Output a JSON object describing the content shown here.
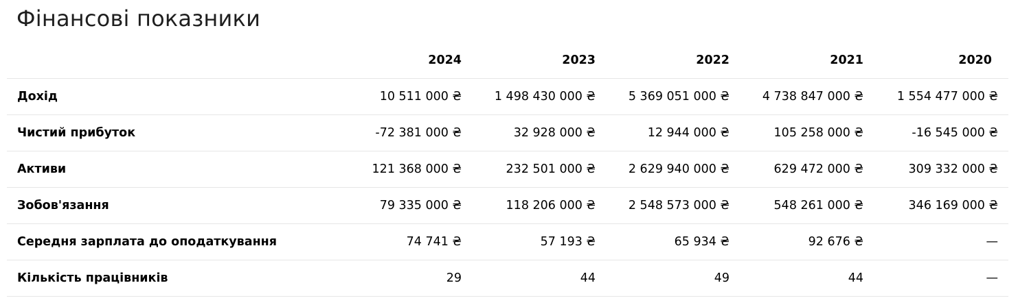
{
  "title": "Фінансові показники",
  "chart_data": {
    "type": "table",
    "title": "Фінансові показники",
    "columns": [
      "2024",
      "2023",
      "2022",
      "2021",
      "2020"
    ],
    "rows": [
      {
        "label": "Дохід",
        "values": [
          "10 511 000 ₴",
          "1 498 430 000 ₴",
          "5 369 051 000 ₴",
          "4 738 847 000 ₴",
          "1 554 477 000 ₴"
        ]
      },
      {
        "label": "Чистий прибуток",
        "values": [
          "-72 381 000 ₴",
          "32 928 000 ₴",
          "12 944 000 ₴",
          "105 258 000 ₴",
          "-16 545 000 ₴"
        ]
      },
      {
        "label": "Активи",
        "values": [
          "121 368 000 ₴",
          "232 501 000 ₴",
          "2 629 940 000 ₴",
          "629 472 000 ₴",
          "309 332 000 ₴"
        ]
      },
      {
        "label": "Зобов'язання",
        "values": [
          "79 335 000 ₴",
          "118 206 000 ₴",
          "2 548 573 000 ₴",
          "548 261 000 ₴",
          "346 169 000 ₴"
        ]
      },
      {
        "label": "Середня зарплата до оподаткування",
        "values": [
          "74 741 ₴",
          "57 193 ₴",
          "65 934 ₴",
          "92 676 ₴",
          "—"
        ]
      },
      {
        "label": "Кількість працівників",
        "values": [
          "29",
          "44",
          "49",
          "44",
          "—"
        ]
      }
    ]
  }
}
